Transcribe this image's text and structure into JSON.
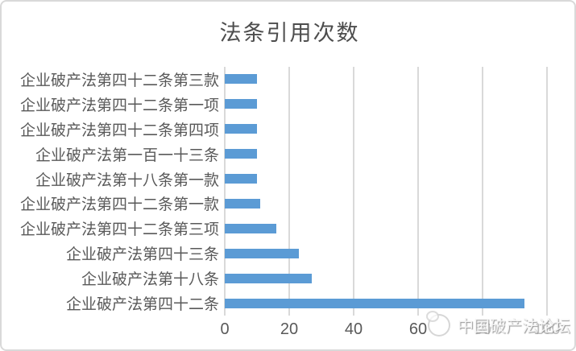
{
  "title": "法条引用次数",
  "watermark": {
    "icon": "forum-logo-icon",
    "text": "中国破产法论坛"
  },
  "colors": {
    "bar": "#5b9bd5",
    "gridline": "#d9d9d9",
    "text": "#595959",
    "border": "#d9d9d9"
  },
  "chart_data": {
    "type": "bar",
    "orientation": "horizontal",
    "title": "法条引用次数",
    "categories": [
      "企业破产法第四十二条第三款",
      "企业破产法第四十二条第一项",
      "企业破产法第四十二条第四项",
      "企业破产法第一百一十三条",
      "企业破产法第十八条第一款",
      "企业破产法第四十二条第一款",
      "企业破产法第四十二条第三项",
      "企业破产法第四十三条",
      "企业破产法第十八条",
      "企业破产法第四十二条"
    ],
    "values": [
      10,
      10,
      10,
      10,
      10,
      11,
      16,
      23,
      27,
      93
    ],
    "xlabel": "",
    "ylabel": "",
    "xlim": [
      0,
      100
    ],
    "xticks": [
      0,
      20,
      40,
      60,
      80,
      100
    ],
    "grid": true,
    "legend": false
  }
}
